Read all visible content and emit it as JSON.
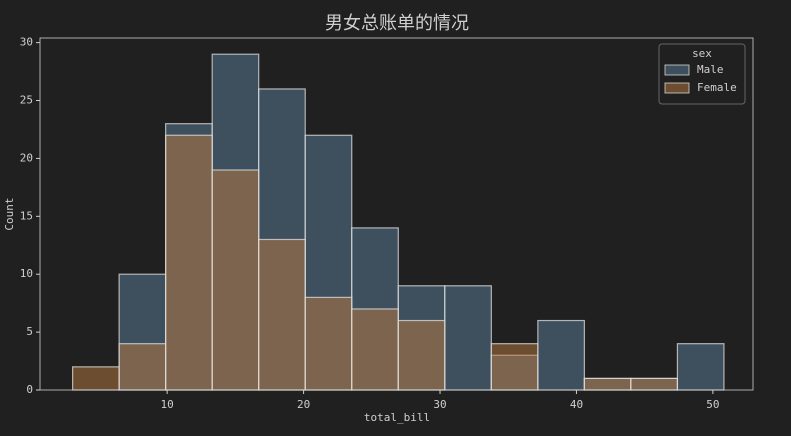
{
  "chart_data": {
    "type": "histogram",
    "title": "男女总账单的情况",
    "x_label": "total_bill",
    "y_label": "Count",
    "bins": [
      3.07,
      6.48,
      9.89,
      13.3,
      16.71,
      20.12,
      23.53,
      26.94,
      30.35,
      33.76,
      37.17,
      40.58,
      43.99,
      47.4,
      50.81
    ],
    "series": [
      {
        "name": "Male",
        "color": "#5b7d9c",
        "values": [
          0,
          10,
          23,
          29,
          26,
          22,
          14,
          9,
          9,
          3,
          6,
          1,
          1,
          4
        ]
      },
      {
        "name": "Female",
        "color": "#b97a3e",
        "values": [
          2,
          4,
          22,
          19,
          13,
          8,
          7,
          6,
          0,
          4,
          0,
          1,
          1,
          0
        ]
      }
    ],
    "legend_title": "sex",
    "legend": "upper right",
    "xlim": [
      0.68,
      52.94
    ],
    "ylim": [
      0,
      30.4
    ],
    "xticks": [
      10,
      20,
      30,
      40,
      50
    ],
    "yticks": [
      0,
      5,
      10,
      15,
      20,
      25,
      30
    ]
  }
}
